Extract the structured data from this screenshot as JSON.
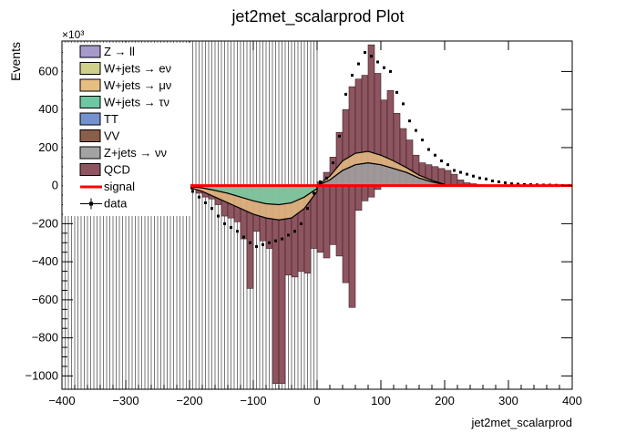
{
  "chart_data": {
    "type": "bar",
    "title": "jet2met_scalarprod Plot",
    "xlabel": "jet2met_scalarprod",
    "ylabel": "Events",
    "y_multiplier": "×10³",
    "xlim": [
      -400,
      400
    ],
    "ylim": [
      -1070,
      760
    ],
    "x_ticks": [
      -400,
      -300,
      -200,
      -100,
      0,
      100,
      200,
      300,
      400
    ],
    "y_ticks": [
      -1000,
      -800,
      -600,
      -400,
      -200,
      0,
      200,
      400,
      600
    ],
    "x_tick_labels": [
      "−400",
      "−300",
      "−200",
      "−100",
      "0",
      "100",
      "200",
      "300",
      "400"
    ],
    "y_tick_labels": [
      "−1000",
      "−800",
      "−600",
      "−400",
      "−200",
      "0",
      "200",
      "400",
      "600"
    ],
    "legend_placement": "top-left",
    "legend": [
      {
        "label": "Z → ll",
        "color": "#a59ac9"
      },
      {
        "label": "W+jets → eν",
        "color": "#cfd18a"
      },
      {
        "label": "W+jets → μν",
        "color": "#e6bd82"
      },
      {
        "label": "W+jets → τν",
        "color": "#6fc6a2"
      },
      {
        "label": "TT",
        "color": "#7592d0"
      },
      {
        "label": "VV",
        "color": "#8b5d4b"
      },
      {
        "label": "Z+jets → νν",
        "color": "#a3a3a3"
      },
      {
        "label": "QCD",
        "color": "#8e5560"
      },
      {
        "label": "signal",
        "color": "#ff0000"
      },
      {
        "label": "data",
        "color": "#000000"
      }
    ],
    "bin_width": 10,
    "qcd_left": {
      "x_start": -200,
      "values": [
        -20,
        -40,
        -60,
        -70,
        -100,
        -160,
        -170,
        -190,
        -280,
        -540,
        -240,
        -290,
        -330,
        -1040,
        -1040,
        -470,
        -480,
        -450,
        -460,
        -330,
        -350,
        -380,
        -310,
        -370,
        -510,
        -640,
        -130,
        -80,
        -60,
        -20
      ]
    },
    "qcd_right": {
      "x_start": 0,
      "values": [
        20,
        70,
        150,
        280,
        400,
        520,
        560,
        580,
        740,
        590,
        450,
        500,
        380,
        300,
        240,
        160,
        120,
        110,
        100,
        90,
        80,
        60,
        30,
        15,
        10,
        5,
        3,
        2,
        1,
        1,
        0,
        0,
        0,
        0,
        0,
        0,
        0,
        0,
        0,
        0
      ]
    },
    "stack_upper": [
      {
        "name": "Z+jets → νν",
        "x": [
          0,
          20,
          40,
          60,
          80,
          100,
          120,
          140,
          160,
          180,
          200
        ],
        "values": [
          0,
          30,
          80,
          110,
          120,
          110,
          90,
          70,
          40,
          20,
          5
        ]
      },
      {
        "name": "W+jets → μν",
        "x": [
          0,
          20,
          40,
          60,
          80,
          100,
          120,
          140,
          160,
          180,
          200
        ],
        "values": [
          0,
          20,
          50,
          60,
          60,
          50,
          40,
          25,
          15,
          8,
          2
        ]
      }
    ],
    "stack_lower_total": {
      "x": [
        -200,
        -180,
        -160,
        -140,
        -120,
        -100,
        -80,
        -60,
        -40,
        -20,
        0
      ],
      "values": [
        -10,
        -30,
        -60,
        -90,
        -120,
        -150,
        -170,
        -180,
        -170,
        -120,
        -30
      ]
    },
    "stack_lower_tt": {
      "x": [
        -200,
        -180,
        -160,
        -140,
        -120,
        -100,
        -80,
        -60,
        -40,
        -20,
        0
      ],
      "values": [
        -5,
        -12,
        -25,
        -40,
        -60,
        -80,
        -95,
        -100,
        -90,
        -60,
        -15
      ]
    },
    "signal_level": 0,
    "data_right": {
      "x": [
        5,
        15,
        25,
        35,
        45,
        55,
        65,
        75,
        85,
        95,
        105,
        115,
        125,
        135,
        145,
        155,
        165,
        175,
        185,
        195,
        205,
        215,
        225,
        235,
        245,
        255,
        265,
        275,
        285,
        295,
        305,
        315,
        325,
        335,
        345,
        355,
        365,
        375,
        385,
        395
      ],
      "values": [
        20,
        40,
        120,
        260,
        480,
        580,
        640,
        700,
        680,
        650,
        620,
        600,
        490,
        430,
        340,
        290,
        240,
        190,
        160,
        130,
        110,
        80,
        70,
        60,
        50,
        40,
        35,
        25,
        20,
        15,
        10,
        8,
        6,
        5,
        4,
        3,
        3,
        2,
        1,
        1
      ]
    },
    "data_left": {
      "x": [
        -195,
        -185,
        -175,
        -165,
        -155,
        -145,
        -135,
        -125,
        -115,
        -105,
        -95,
        -85,
        -75,
        -65,
        -55,
        -45,
        -35,
        -25,
        -15,
        -5
      ],
      "values": [
        -30,
        -60,
        -90,
        -120,
        -160,
        -200,
        -220,
        -240,
        -270,
        -300,
        -320,
        -310,
        -300,
        -290,
        -280,
        -260,
        -240,
        -200,
        -120,
        -40
      ]
    },
    "grey_band": {
      "x_start": -400,
      "x_end": 0,
      "line_step": 5
    }
  }
}
